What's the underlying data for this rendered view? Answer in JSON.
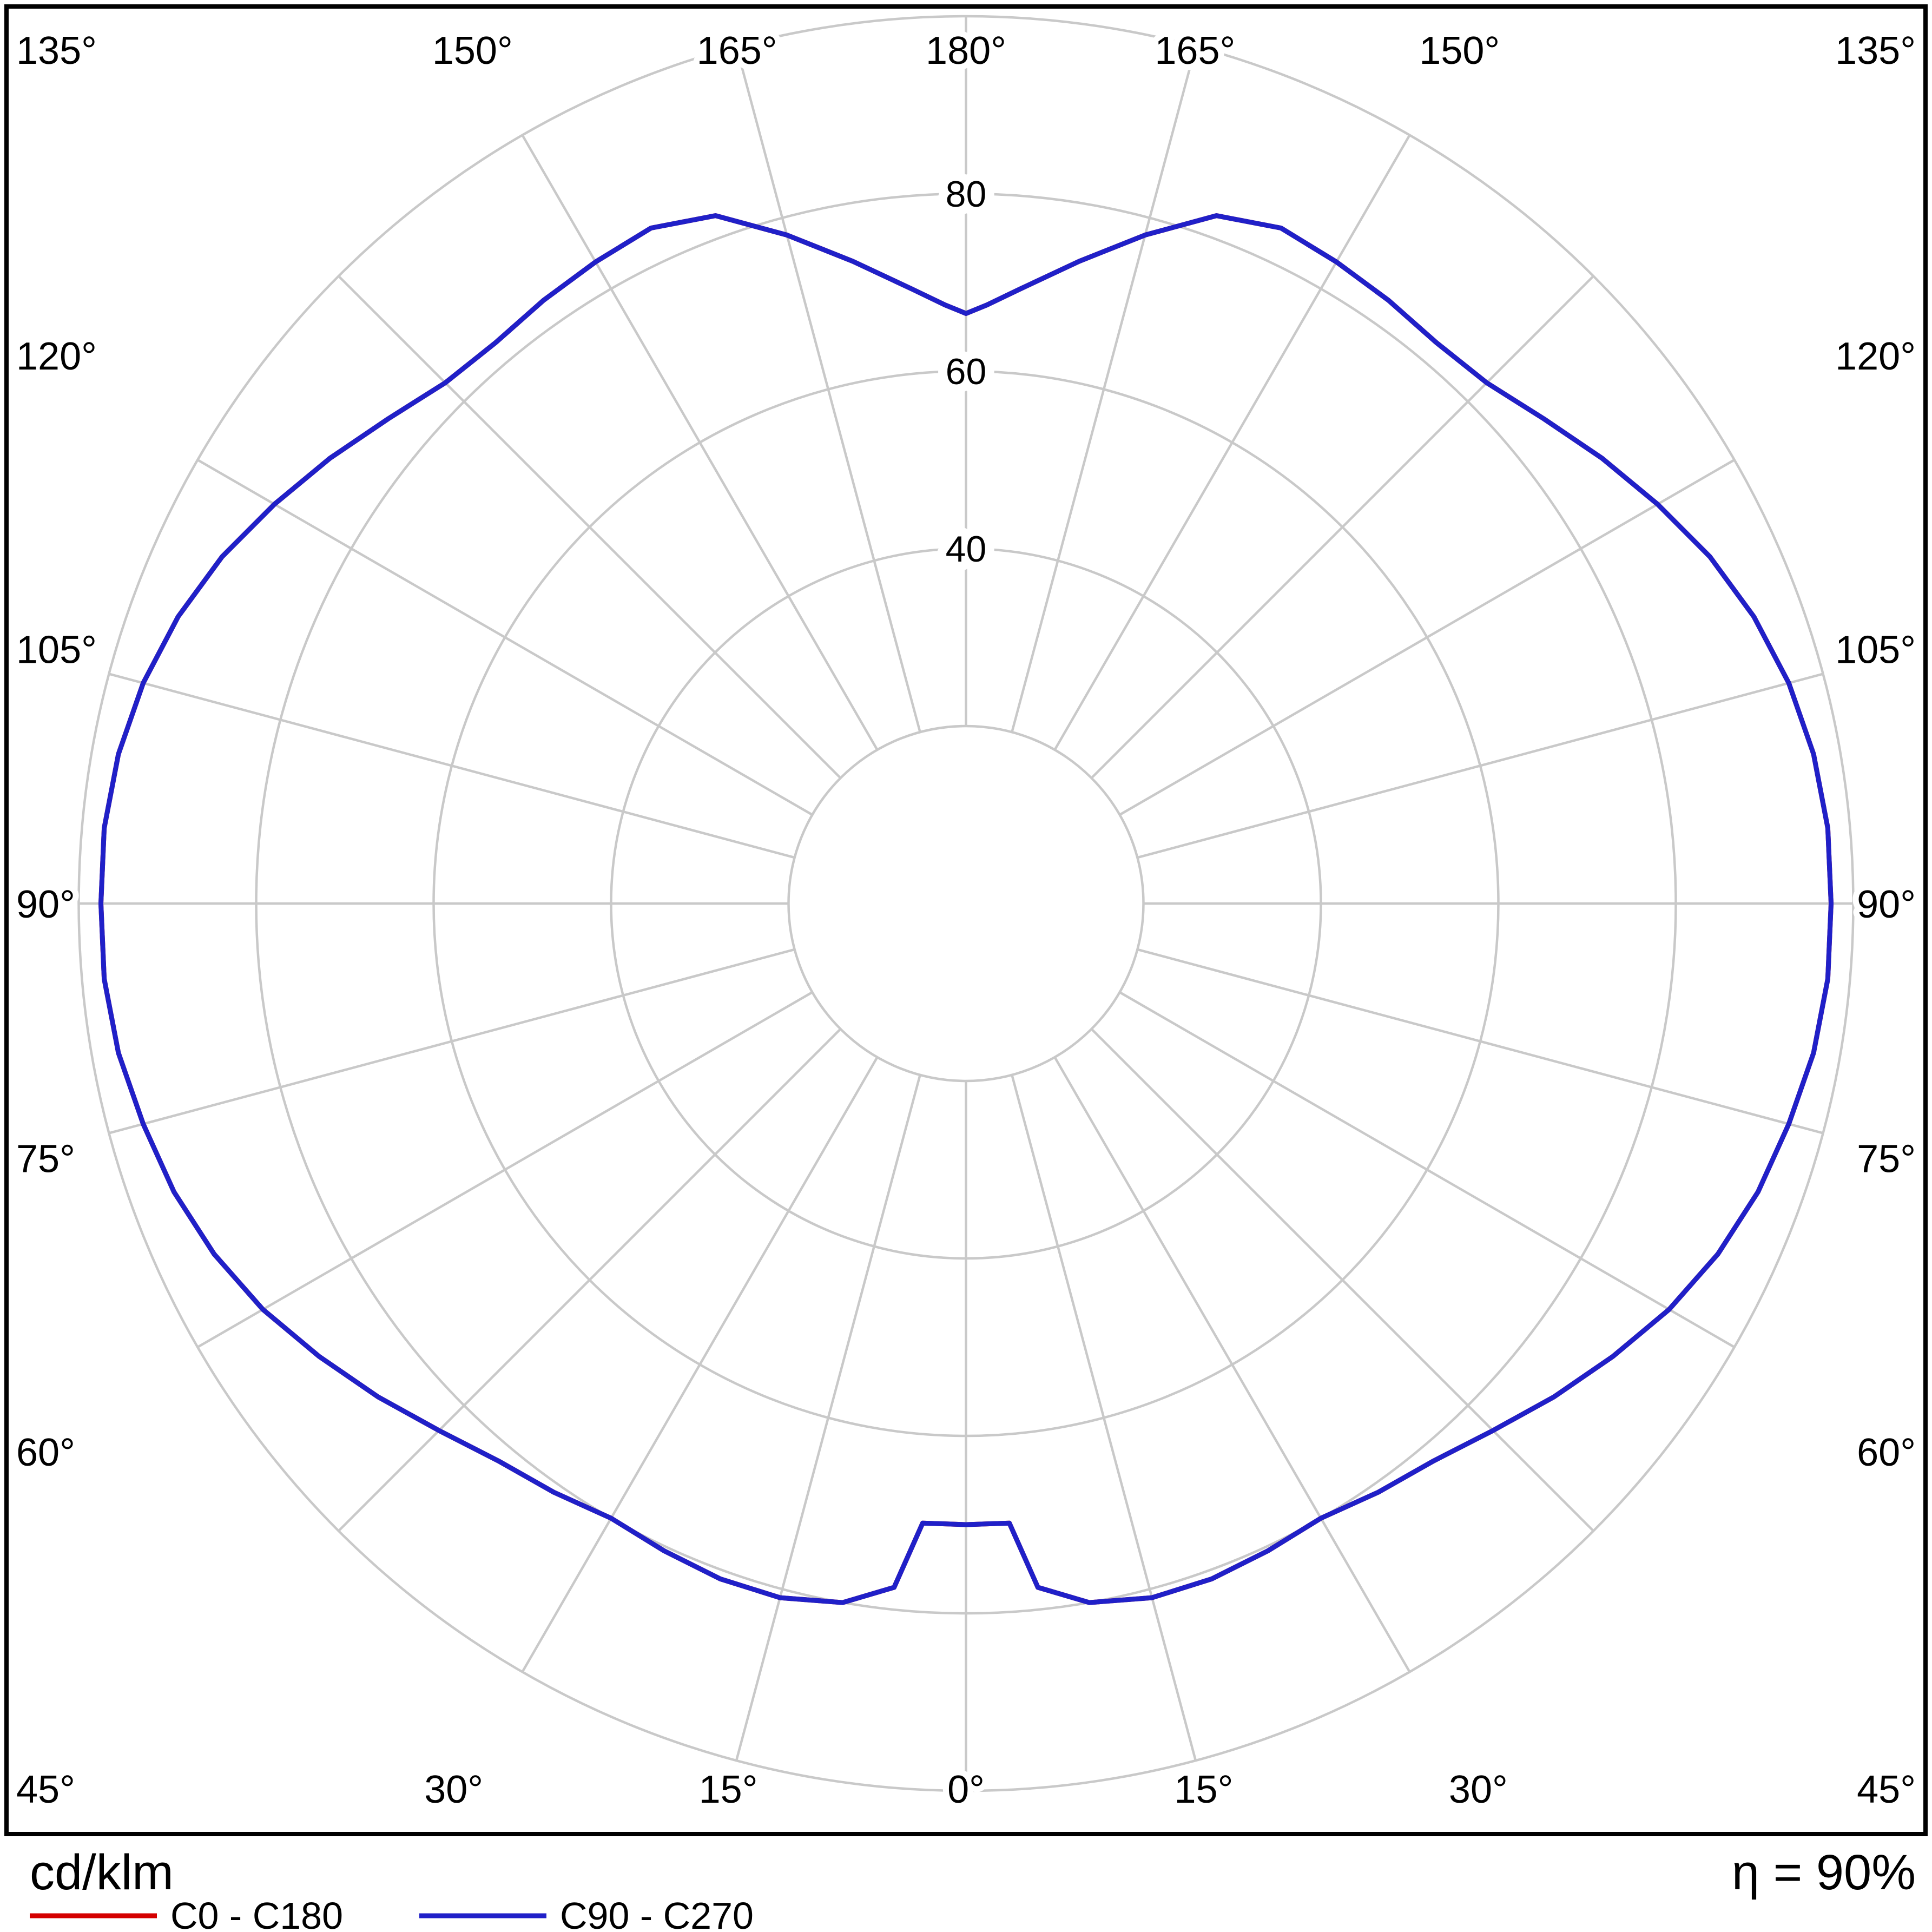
{
  "colors": {
    "background": "#ffffff",
    "grid": "#c9c9c9",
    "frame": "#000000",
    "text": "#000000"
  },
  "chart_data": {
    "type": "polar",
    "variant": "luminous-intensity-distribution",
    "unit_label": "cd/klm",
    "efficiency_label": "η = 90%",
    "angle_tick_step_deg": 15,
    "angle_labels": [
      "0°",
      "15°",
      "30°",
      "45°",
      "60°",
      "75°",
      "90°",
      "105°",
      "120°",
      "135°",
      "150°",
      "165°",
      "180°"
    ],
    "radial_rings_cd_per_klm": [
      20,
      40,
      60,
      80,
      100
    ],
    "radial_ring_labels": [
      "40",
      "60",
      "80"
    ],
    "radial_units_per_ring": 20,
    "grid": true,
    "legend_position": "bottom-left",
    "series": [
      {
        "name": "C0 - C180",
        "color": "#d40000",
        "symmetric_mirror": true,
        "gamma_deg": [
          0,
          4,
          6,
          10,
          15,
          20,
          25,
          30,
          35,
          40,
          45,
          50,
          55,
          60,
          65,
          70,
          75,
          80,
          85,
          90,
          95,
          100,
          105,
          110,
          115,
          120,
          125,
          130,
          135,
          140,
          145,
          150,
          155,
          160,
          165,
          170,
          175,
          178,
          180
        ],
        "cd_per_klm": [
          70,
          70,
          77.5,
          80,
          81,
          81,
          80.5,
          80,
          81,
          82,
          84,
          86.5,
          89,
          91.5,
          93.5,
          95,
          96,
          97,
          97.5,
          97.5,
          97.5,
          97,
          96,
          94.5,
          92.5,
          90,
          87.5,
          85,
          83,
          82.5,
          83,
          83.5,
          84,
          82.5,
          78,
          73.5,
          69.5,
          67.5,
          66.5
        ]
      },
      {
        "name": "C90 - C270",
        "color": "#2020c8",
        "symmetric_mirror": true,
        "gamma_deg": [
          0,
          4,
          6,
          10,
          15,
          20,
          25,
          30,
          35,
          40,
          45,
          50,
          55,
          60,
          65,
          70,
          75,
          80,
          85,
          90,
          95,
          100,
          105,
          110,
          115,
          120,
          125,
          130,
          135,
          140,
          145,
          150,
          155,
          160,
          165,
          170,
          175,
          178,
          180
        ],
        "cd_per_klm": [
          70,
          70,
          77.5,
          80,
          81,
          81,
          80.5,
          80,
          81,
          82,
          84,
          86.5,
          89,
          91.5,
          93.5,
          95,
          96,
          97,
          97.5,
          97.5,
          97.5,
          97,
          96,
          94.5,
          92.5,
          90,
          87.5,
          85,
          83,
          82.5,
          83,
          83.5,
          84,
          82.5,
          78,
          73.5,
          69.5,
          67.5,
          66.5
        ]
      }
    ]
  }
}
